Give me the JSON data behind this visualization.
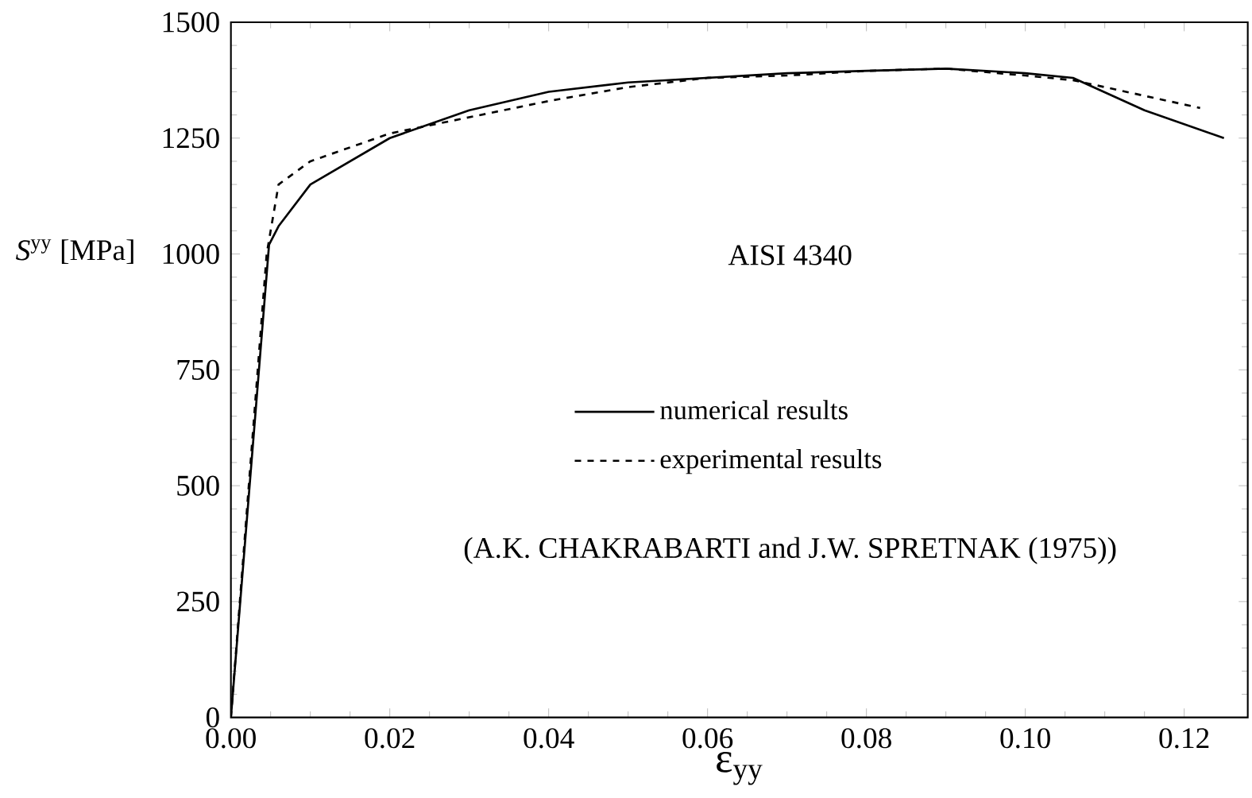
{
  "chart_data": {
    "type": "line",
    "xlabel": "ε$_{yy}$",
    "ylabel": "*S*$^{yy}$ [MPa]",
    "xlim": [
      0,
      0.128
    ],
    "ylim": [
      0,
      1500
    ],
    "xticks": [
      {
        "value": 0,
        "label": "0.00"
      },
      {
        "value": 0.02,
        "label": "0.02"
      },
      {
        "value": 0.04,
        "label": "0.04"
      },
      {
        "value": 0.06,
        "label": "0.06"
      },
      {
        "value": 0.08,
        "label": "0.08"
      },
      {
        "value": 0.1,
        "label": "0.10"
      },
      {
        "value": 0.12,
        "label": "0.12"
      }
    ],
    "yticks": [
      0,
      250,
      500,
      750,
      1000,
      1250,
      1500
    ],
    "legend": "center",
    "grid": false,
    "marker": "none",
    "annotations": [
      "AISI 4340",
      "(A.K. CHAKRABARTI and J.W. SPRETNAK (1975))"
    ],
    "series": [
      {
        "name": "numerical results",
        "color": "#000000",
        "line_style": "solid",
        "x": [
          0,
          0.0048,
          0.006,
          0.01,
          0.02,
          0.03,
          0.04,
          0.05,
          0.06,
          0.07,
          0.08,
          0.09,
          0.1,
          0.106,
          0.115,
          0.125
        ],
        "values": [
          0,
          1020,
          1060,
          1150,
          1250,
          1310,
          1350,
          1370,
          1380,
          1390,
          1395,
          1400,
          1390,
          1380,
          1310,
          1250
        ]
      },
      {
        "name": "experimental results",
        "color": "#000000",
        "line_style": "dashed",
        "x": [
          0,
          0.0045,
          0.006,
          0.01,
          0.02,
          0.03,
          0.04,
          0.05,
          0.06,
          0.07,
          0.08,
          0.09,
          0.1,
          0.106,
          0.122
        ],
        "values": [
          0,
          1000,
          1150,
          1200,
          1260,
          1295,
          1330,
          1360,
          1380,
          1385,
          1395,
          1400,
          1385,
          1375,
          1315
        ]
      }
    ]
  }
}
